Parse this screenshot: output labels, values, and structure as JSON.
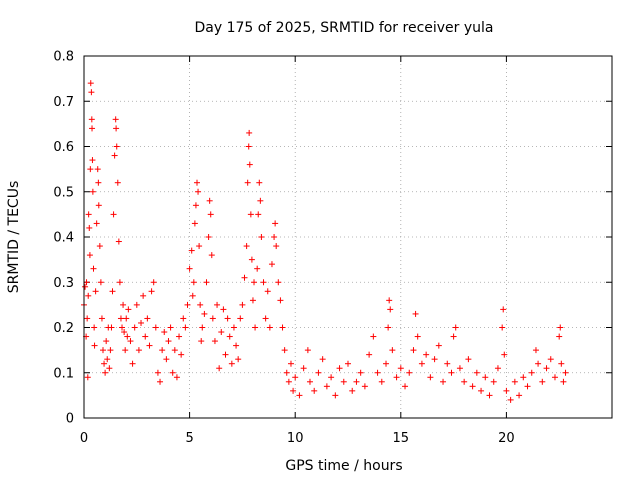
{
  "chart_data": {
    "type": "scatter",
    "title": "Day 175 of 2025, SRMTID for receiver yula",
    "xlabel": "GPS time / hours",
    "ylabel": "SRMTID / TECUs",
    "xlim": [
      0,
      25
    ],
    "ylim": [
      0,
      0.8
    ],
    "xticks": [
      0,
      5,
      10,
      15,
      20
    ],
    "xtick_labels": [
      "0",
      "5",
      "10",
      "15",
      "20"
    ],
    "yticks": [
      0,
      0.1,
      0.2,
      0.3,
      0.4,
      0.5,
      0.6,
      0.7,
      0.8
    ],
    "ytick_labels": [
      "0",
      "0.1",
      "0.2",
      "0.3",
      "0.4",
      "0.5",
      "0.6",
      "0.7",
      "0.8"
    ],
    "grid": true,
    "marker": "plus",
    "marker_color": "#ff0000",
    "series": [
      {
        "name": "SRMTID",
        "points": [
          [
            0.0,
            0.25
          ],
          [
            0.05,
            0.29
          ],
          [
            0.1,
            0.18
          ],
          [
            0.12,
            0.3
          ],
          [
            0.15,
            0.22
          ],
          [
            0.18,
            0.09
          ],
          [
            0.2,
            0.27
          ],
          [
            0.22,
            0.45
          ],
          [
            0.25,
            0.42
          ],
          [
            0.28,
            0.36
          ],
          [
            0.3,
            0.55
          ],
          [
            0.32,
            0.74
          ],
          [
            0.35,
            0.72
          ],
          [
            0.37,
            0.66
          ],
          [
            0.38,
            0.64
          ],
          [
            0.4,
            0.57
          ],
          [
            0.42,
            0.5
          ],
          [
            0.45,
            0.33
          ],
          [
            0.48,
            0.2
          ],
          [
            0.5,
            0.16
          ],
          [
            0.55,
            0.28
          ],
          [
            0.6,
            0.43
          ],
          [
            0.65,
            0.55
          ],
          [
            0.68,
            0.52
          ],
          [
            0.7,
            0.47
          ],
          [
            0.75,
            0.38
          ],
          [
            0.8,
            0.3
          ],
          [
            0.85,
            0.22
          ],
          [
            0.9,
            0.15
          ],
          [
            0.95,
            0.12
          ],
          [
            1.0,
            0.1
          ],
          [
            1.05,
            0.17
          ],
          [
            1.1,
            0.13
          ],
          [
            1.15,
            0.2
          ],
          [
            1.2,
            0.11
          ],
          [
            1.25,
            0.15
          ],
          [
            1.3,
            0.2
          ],
          [
            1.35,
            0.28
          ],
          [
            1.4,
            0.45
          ],
          [
            1.45,
            0.58
          ],
          [
            1.5,
            0.66
          ],
          [
            1.52,
            0.64
          ],
          [
            1.55,
            0.6
          ],
          [
            1.6,
            0.52
          ],
          [
            1.65,
            0.39
          ],
          [
            1.7,
            0.3
          ],
          [
            1.75,
            0.22
          ],
          [
            1.8,
            0.2
          ],
          [
            1.85,
            0.25
          ],
          [
            1.9,
            0.19
          ],
          [
            1.95,
            0.15
          ],
          [
            2.0,
            0.22
          ],
          [
            2.05,
            0.18
          ],
          [
            2.1,
            0.24
          ],
          [
            2.2,
            0.17
          ],
          [
            2.3,
            0.12
          ],
          [
            2.4,
            0.2
          ],
          [
            2.5,
            0.25
          ],
          [
            2.6,
            0.15
          ],
          [
            2.7,
            0.21
          ],
          [
            2.8,
            0.27
          ],
          [
            2.9,
            0.18
          ],
          [
            3.0,
            0.22
          ],
          [
            3.1,
            0.16
          ],
          [
            3.2,
            0.28
          ],
          [
            3.3,
            0.3
          ],
          [
            3.4,
            0.2
          ],
          [
            3.5,
            0.1
          ],
          [
            3.6,
            0.08
          ],
          [
            3.7,
            0.15
          ],
          [
            3.8,
            0.19
          ],
          [
            3.9,
            0.13
          ],
          [
            4.0,
            0.17
          ],
          [
            4.1,
            0.2
          ],
          [
            4.2,
            0.1
          ],
          [
            4.3,
            0.15
          ],
          [
            4.4,
            0.09
          ],
          [
            4.5,
            0.18
          ],
          [
            4.6,
            0.14
          ],
          [
            4.7,
            0.22
          ],
          [
            4.8,
            0.2
          ],
          [
            4.9,
            0.25
          ],
          [
            5.0,
            0.33
          ],
          [
            5.1,
            0.37
          ],
          [
            5.15,
            0.27
          ],
          [
            5.2,
            0.3
          ],
          [
            5.25,
            0.43
          ],
          [
            5.3,
            0.47
          ],
          [
            5.35,
            0.52
          ],
          [
            5.4,
            0.5
          ],
          [
            5.45,
            0.38
          ],
          [
            5.5,
            0.25
          ],
          [
            5.55,
            0.17
          ],
          [
            5.6,
            0.2
          ],
          [
            5.7,
            0.23
          ],
          [
            5.8,
            0.3
          ],
          [
            5.9,
            0.4
          ],
          [
            5.95,
            0.48
          ],
          [
            6.0,
            0.45
          ],
          [
            6.05,
            0.36
          ],
          [
            6.1,
            0.22
          ],
          [
            6.2,
            0.17
          ],
          [
            6.3,
            0.25
          ],
          [
            6.4,
            0.11
          ],
          [
            6.5,
            0.19
          ],
          [
            6.6,
            0.24
          ],
          [
            6.7,
            0.14
          ],
          [
            6.8,
            0.22
          ],
          [
            6.9,
            0.18
          ],
          [
            7.0,
            0.12
          ],
          [
            7.1,
            0.2
          ],
          [
            7.2,
            0.16
          ],
          [
            7.3,
            0.13
          ],
          [
            7.4,
            0.22
          ],
          [
            7.5,
            0.25
          ],
          [
            7.6,
            0.31
          ],
          [
            7.7,
            0.38
          ],
          [
            7.75,
            0.52
          ],
          [
            7.8,
            0.6
          ],
          [
            7.82,
            0.63
          ],
          [
            7.85,
            0.56
          ],
          [
            7.9,
            0.45
          ],
          [
            7.95,
            0.35
          ],
          [
            8.0,
            0.26
          ],
          [
            8.05,
            0.3
          ],
          [
            8.1,
            0.2
          ],
          [
            8.2,
            0.33
          ],
          [
            8.25,
            0.45
          ],
          [
            8.3,
            0.52
          ],
          [
            8.35,
            0.48
          ],
          [
            8.4,
            0.4
          ],
          [
            8.5,
            0.3
          ],
          [
            8.6,
            0.22
          ],
          [
            8.7,
            0.28
          ],
          [
            8.8,
            0.2
          ],
          [
            8.9,
            0.34
          ],
          [
            9.0,
            0.4
          ],
          [
            9.05,
            0.43
          ],
          [
            9.1,
            0.38
          ],
          [
            9.2,
            0.3
          ],
          [
            9.3,
            0.26
          ],
          [
            9.4,
            0.2
          ],
          [
            9.5,
            0.15
          ],
          [
            9.6,
            0.1
          ],
          [
            9.7,
            0.08
          ],
          [
            9.8,
            0.12
          ],
          [
            9.9,
            0.06
          ],
          [
            10.0,
            0.09
          ],
          [
            10.2,
            0.05
          ],
          [
            10.4,
            0.11
          ],
          [
            10.6,
            0.15
          ],
          [
            10.7,
            0.08
          ],
          [
            10.9,
            0.06
          ],
          [
            11.1,
            0.1
          ],
          [
            11.3,
            0.13
          ],
          [
            11.5,
            0.07
          ],
          [
            11.7,
            0.09
          ],
          [
            11.9,
            0.05
          ],
          [
            12.1,
            0.11
          ],
          [
            12.3,
            0.08
          ],
          [
            12.5,
            0.12
          ],
          [
            12.7,
            0.06
          ],
          [
            12.9,
            0.08
          ],
          [
            13.1,
            0.1
          ],
          [
            13.3,
            0.07
          ],
          [
            13.5,
            0.14
          ],
          [
            13.7,
            0.18
          ],
          [
            13.9,
            0.1
          ],
          [
            14.1,
            0.08
          ],
          [
            14.3,
            0.12
          ],
          [
            14.4,
            0.2
          ],
          [
            14.45,
            0.26
          ],
          [
            14.5,
            0.24
          ],
          [
            14.6,
            0.15
          ],
          [
            14.8,
            0.09
          ],
          [
            15.0,
            0.11
          ],
          [
            15.2,
            0.07
          ],
          [
            15.4,
            0.1
          ],
          [
            15.6,
            0.15
          ],
          [
            15.7,
            0.23
          ],
          [
            15.8,
            0.18
          ],
          [
            16.0,
            0.12
          ],
          [
            16.2,
            0.14
          ],
          [
            16.4,
            0.09
          ],
          [
            16.6,
            0.13
          ],
          [
            16.8,
            0.16
          ],
          [
            17.0,
            0.08
          ],
          [
            17.2,
            0.12
          ],
          [
            17.4,
            0.1
          ],
          [
            17.5,
            0.18
          ],
          [
            17.6,
            0.2
          ],
          [
            17.8,
            0.11
          ],
          [
            18.0,
            0.08
          ],
          [
            18.2,
            0.13
          ],
          [
            18.4,
            0.07
          ],
          [
            18.6,
            0.1
          ],
          [
            18.8,
            0.06
          ],
          [
            19.0,
            0.09
          ],
          [
            19.2,
            0.05
          ],
          [
            19.4,
            0.08
          ],
          [
            19.6,
            0.11
          ],
          [
            19.8,
            0.2
          ],
          [
            19.85,
            0.24
          ],
          [
            19.9,
            0.14
          ],
          [
            20.0,
            0.06
          ],
          [
            20.2,
            0.04
          ],
          [
            20.4,
            0.08
          ],
          [
            20.6,
            0.05
          ],
          [
            20.8,
            0.09
          ],
          [
            21.0,
            0.07
          ],
          [
            21.2,
            0.1
          ],
          [
            21.4,
            0.15
          ],
          [
            21.5,
            0.12
          ],
          [
            21.7,
            0.08
          ],
          [
            21.9,
            0.11
          ],
          [
            22.1,
            0.13
          ],
          [
            22.3,
            0.09
          ],
          [
            22.5,
            0.18
          ],
          [
            22.55,
            0.2
          ],
          [
            22.6,
            0.12
          ],
          [
            22.7,
            0.08
          ],
          [
            22.8,
            0.1
          ]
        ]
      }
    ]
  }
}
